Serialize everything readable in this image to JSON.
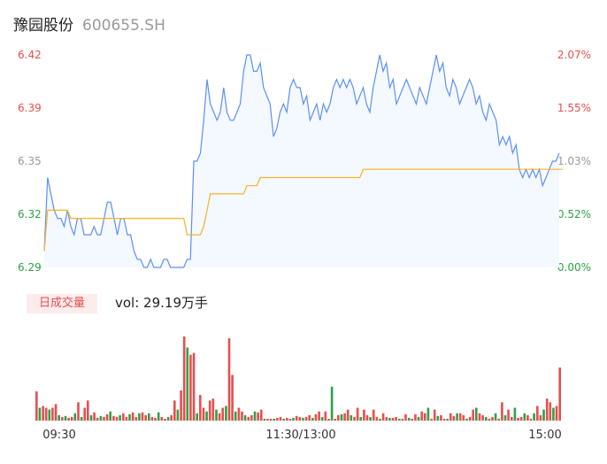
{
  "stock": {
    "name": "豫园股份",
    "code": "600655.SH"
  },
  "volume_badge": "日成交量",
  "volume_text": "vol: 29.19万手",
  "colors": {
    "price_line": "#5b8ff9",
    "avg_line": "#f5b324",
    "up": "#e84e4e",
    "down": "#2aa347",
    "neutral": "#999999",
    "area_fill": "#f4f8ff"
  },
  "chart_data": [
    {
      "type": "line",
      "price_ticks": [
        "6.42",
        "6.39",
        "6.35",
        "6.32",
        "6.29"
      ],
      "pct_ticks": [
        "2.07%",
        "1.55%",
        "1.03%",
        "0.52%",
        "0.00%"
      ],
      "ylim": [
        6.29,
        6.42
      ],
      "series": [
        {
          "values": [
            6.3,
            6.345,
            6.335,
            6.325,
            6.32,
            6.32,
            6.315,
            6.325,
            6.315,
            6.31,
            6.32,
            6.32,
            6.31,
            6.31,
            6.31,
            6.315,
            6.31,
            6.31,
            6.32,
            6.33,
            6.33,
            6.32,
            6.31,
            6.32,
            6.32,
            6.31,
            6.31,
            6.3,
            6.295,
            6.295,
            6.29,
            6.29,
            6.295,
            6.29,
            6.29,
            6.29,
            6.295,
            6.295,
            6.29,
            6.29,
            6.29,
            6.29,
            6.29,
            6.295,
            6.295,
            6.355,
            6.355,
            6.36,
            6.38,
            6.405,
            6.39,
            6.385,
            6.38,
            6.385,
            6.4,
            6.385,
            6.38,
            6.38,
            6.385,
            6.39,
            6.41,
            6.42,
            6.42,
            6.41,
            6.41,
            6.415,
            6.4,
            6.395,
            6.39,
            6.37,
            6.375,
            6.385,
            6.39,
            6.385,
            6.4,
            6.405,
            6.4,
            6.4,
            6.39,
            6.395,
            6.38,
            6.385,
            6.39,
            6.38,
            6.39,
            6.385,
            6.39,
            6.4,
            6.405,
            6.4,
            6.405,
            6.4,
            6.405,
            6.4,
            6.39,
            6.395,
            6.4,
            6.39,
            6.385,
            6.4,
            6.41,
            6.42,
            6.41,
            6.415,
            6.4,
            6.405,
            6.39,
            6.395,
            6.4,
            6.405,
            6.4,
            6.395,
            6.39,
            6.4,
            6.395,
            6.39,
            6.4,
            6.41,
            6.42,
            6.41,
            6.415,
            6.4,
            6.395,
            6.405,
            6.4,
            6.39,
            6.395,
            6.4,
            6.405,
            6.4,
            6.39,
            6.395,
            6.385,
            6.38,
            6.39,
            6.385,
            6.38,
            6.365,
            6.37,
            6.365,
            6.37,
            6.36,
            6.365,
            6.35,
            6.345,
            6.35,
            6.345,
            6.35,
            6.345,
            6.35,
            6.34,
            6.345,
            6.35,
            6.355,
            6.355,
            6.36
          ],
          "color": "#5b8ff9"
        },
        {
          "values": [
            6.3,
            6.325,
            6.325,
            6.325,
            6.325,
            6.325,
            6.325,
            6.325,
            6.32,
            6.32,
            6.32,
            6.32,
            6.32,
            6.32,
            6.32,
            6.32,
            6.32,
            6.32,
            6.32,
            6.32,
            6.32,
            6.32,
            6.32,
            6.32,
            6.32,
            6.32,
            6.32,
            6.32,
            6.32,
            6.32,
            6.32,
            6.32,
            6.32,
            6.32,
            6.32,
            6.32,
            6.32,
            6.32,
            6.32,
            6.32,
            6.32,
            6.32,
            6.32,
            6.31,
            6.31,
            6.31,
            6.31,
            6.31,
            6.315,
            6.325,
            6.335,
            6.335,
            6.335,
            6.335,
            6.335,
            6.335,
            6.335,
            6.335,
            6.335,
            6.335,
            6.335,
            6.34,
            6.34,
            6.34,
            6.34,
            6.345,
            6.345,
            6.345,
            6.345,
            6.345,
            6.345,
            6.345,
            6.345,
            6.345,
            6.345,
            6.345,
            6.345,
            6.345,
            6.345,
            6.345,
            6.345,
            6.345,
            6.345,
            6.345,
            6.345,
            6.345,
            6.345,
            6.345,
            6.345,
            6.345,
            6.345,
            6.345,
            6.345,
            6.345,
            6.345,
            6.345,
            6.35,
            6.35,
            6.35,
            6.35,
            6.35,
            6.35,
            6.35,
            6.35,
            6.35,
            6.35,
            6.35,
            6.35,
            6.35,
            6.35,
            6.35,
            6.35,
            6.35,
            6.35,
            6.35,
            6.35,
            6.35,
            6.35,
            6.35,
            6.35,
            6.35,
            6.35,
            6.35,
            6.35,
            6.35,
            6.35,
            6.35,
            6.35,
            6.35,
            6.35,
            6.35,
            6.35,
            6.35,
            6.35,
            6.35,
            6.35,
            6.35,
            6.35,
            6.35,
            6.35,
            6.35,
            6.35,
            6.35,
            6.35,
            6.35,
            6.35,
            6.35,
            6.35,
            6.35,
            6.35,
            6.35,
            6.35,
            6.35,
            6.35,
            6.35,
            6.35,
            6.35
          ],
          "color": "#f5b324"
        }
      ]
    },
    {
      "type": "bar",
      "x_ticks": [
        "09:30",
        "11:30/13:00",
        "15:00"
      ],
      "values": [
        32,
        14,
        16,
        14,
        12,
        14,
        18,
        6,
        4,
        5,
        3,
        4,
        8,
        20,
        4,
        14,
        22,
        6,
        9,
        3,
        5,
        4,
        7,
        10,
        5,
        4,
        6,
        8,
        4,
        7,
        9,
        4,
        8,
        9,
        6,
        8,
        4,
        3,
        9,
        4,
        2,
        4,
        6,
        22,
        12,
        33,
        92,
        80,
        72,
        74,
        8,
        28,
        14,
        10,
        22,
        24,
        12,
        8,
        14,
        16,
        90,
        50,
        10,
        14,
        10,
        6,
        4,
        6,
        10,
        9,
        12,
        2,
        2,
        2,
        2,
        3,
        4,
        2,
        3,
        2,
        3,
        5,
        4,
        3,
        4,
        6,
        3,
        7,
        10,
        4,
        10,
        2,
        37,
        2,
        6,
        7,
        8,
        12,
        6,
        4,
        14,
        4,
        12,
        6,
        4,
        12,
        4,
        2,
        8,
        4,
        3,
        3,
        4,
        2,
        2,
        7,
        3,
        2,
        7,
        4,
        10,
        8,
        14,
        2,
        12,
        5,
        6,
        2,
        2,
        8,
        5,
        8,
        8,
        6,
        2,
        4,
        12,
        14,
        8,
        6,
        4,
        2,
        4,
        8,
        2,
        20,
        6,
        12,
        4,
        14,
        3,
        4,
        8,
        6,
        2,
        8,
        16,
        6,
        12,
        24,
        20,
        14,
        16,
        58
      ],
      "colors": [
        "up",
        "down",
        "up",
        "up",
        "down",
        "up",
        "up",
        "down",
        "up",
        "down",
        "up",
        "up",
        "down",
        "up",
        "down",
        "up",
        "up",
        "down",
        "up",
        "up",
        "down",
        "up",
        "up",
        "down",
        "up",
        "up",
        "down",
        "up",
        "up",
        "down",
        "up",
        "up",
        "down",
        "up",
        "up",
        "down",
        "up",
        "up",
        "down",
        "up",
        "up",
        "down",
        "up",
        "up",
        "down",
        "up",
        "up",
        "down",
        "up",
        "up",
        "down",
        "up",
        "up",
        "down",
        "up",
        "up",
        "down",
        "up",
        "up",
        "down",
        "up",
        "up",
        "down",
        "up",
        "up",
        "down",
        "up",
        "up",
        "down",
        "up",
        "up",
        "down",
        "up",
        "up",
        "down",
        "up",
        "up",
        "down",
        "up",
        "up",
        "down",
        "up",
        "up",
        "down",
        "up",
        "up",
        "down",
        "up",
        "up",
        "down",
        "up",
        "up",
        "down",
        "up",
        "up",
        "down",
        "up",
        "up",
        "down",
        "up",
        "up",
        "down",
        "up",
        "up",
        "down",
        "up",
        "up",
        "down",
        "up",
        "up",
        "down",
        "up",
        "up",
        "down",
        "up",
        "up",
        "down",
        "up",
        "up",
        "down",
        "up",
        "up",
        "down",
        "up",
        "up",
        "down",
        "up",
        "up",
        "down",
        "up",
        "up",
        "down",
        "up",
        "up",
        "down",
        "up",
        "up",
        "down",
        "up",
        "up",
        "down",
        "up",
        "up",
        "down",
        "up",
        "up",
        "down",
        "up",
        "up",
        "down",
        "up",
        "up",
        "down",
        "up",
        "up",
        "down",
        "up",
        "up",
        "down",
        "up",
        "up",
        "down",
        "up",
        "up",
        "down"
      ]
    }
  ]
}
